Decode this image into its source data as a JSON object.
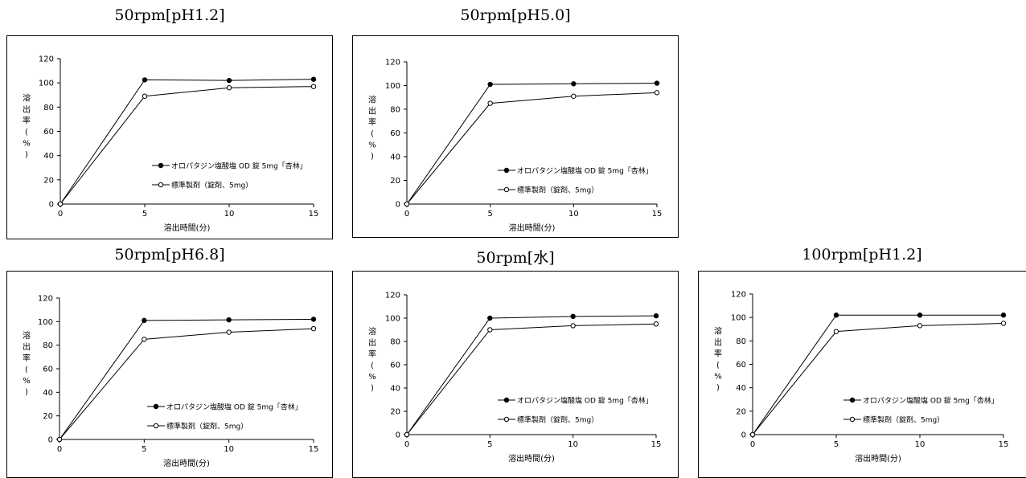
{
  "chart_data": [
    {
      "type": "line",
      "title": "50rpm[pH1.2]",
      "xlabel": "溶出時間(分)",
      "ylabel": "溶出率(%)",
      "xlim": [
        0,
        15
      ],
      "ylim": [
        0,
        120
      ],
      "xticks": [
        0,
        5,
        10,
        15
      ],
      "yticks": [
        0,
        20,
        40,
        60,
        80,
        100,
        120
      ],
      "grid": false,
      "legend_position": "bottom-right",
      "x": [
        0,
        5,
        10,
        15
      ],
      "series": [
        {
          "name": "オロパタジン塩酸塩 OD 錠 5mg「杏林」",
          "marker": "filled-circle",
          "color": "#000000",
          "values": [
            0,
            102.5,
            102,
            103
          ]
        },
        {
          "name": "標準製剤（錠剤、5mg）",
          "marker": "open-circle",
          "color": "#000000",
          "values": [
            0,
            89,
            96,
            97
          ]
        }
      ]
    },
    {
      "type": "line",
      "title": "50rpm[pH5.0]",
      "xlabel": "溶出時間(分)",
      "ylabel": "溶出率(%)",
      "xlim": [
        0,
        15
      ],
      "ylim": [
        0,
        120
      ],
      "xticks": [
        0,
        5,
        10,
        15
      ],
      "yticks": [
        0,
        20,
        40,
        60,
        80,
        100,
        120
      ],
      "grid": false,
      "legend_position": "bottom-right",
      "x": [
        0,
        5,
        10,
        15
      ],
      "series": [
        {
          "name": "オロパタジン塩酸塩 OD 錠 5mg「杏林」",
          "marker": "filled-circle",
          "color": "#000000",
          "values": [
            0,
            101,
            101.5,
            102
          ]
        },
        {
          "name": "標準製剤（錠剤、5mg）",
          "marker": "open-circle",
          "color": "#000000",
          "values": [
            0,
            85,
            91,
            94
          ]
        }
      ]
    },
    {
      "type": "line",
      "title": "50rpm[pH6.8]",
      "xlabel": "溶出時間(分)",
      "ylabel": "溶出率(%)",
      "xlim": [
        0,
        15
      ],
      "ylim": [
        0,
        120
      ],
      "xticks": [
        0,
        5,
        10,
        15
      ],
      "yticks": [
        0,
        20,
        40,
        60,
        80,
        100,
        120
      ],
      "grid": false,
      "legend_position": "bottom-right",
      "x": [
        0,
        5,
        10,
        15
      ],
      "series": [
        {
          "name": "オロパタジン塩酸塩 OD 錠 5mg「杏林」",
          "marker": "filled-circle",
          "color": "#000000",
          "values": [
            0,
            101,
            101.5,
            102
          ]
        },
        {
          "name": "標準製剤（錠剤、5mg）",
          "marker": "open-circle",
          "color": "#000000",
          "values": [
            0,
            85,
            91,
            94
          ]
        }
      ]
    },
    {
      "type": "line",
      "title": "50rpm[水]",
      "xlabel": "溶出時間(分)",
      "ylabel": "溶出率(%)",
      "xlim": [
        0,
        15
      ],
      "ylim": [
        0,
        120
      ],
      "xticks": [
        0,
        5,
        10,
        15
      ],
      "yticks": [
        0,
        20,
        40,
        60,
        80,
        100,
        120
      ],
      "grid": false,
      "legend_position": "bottom-right",
      "x": [
        0,
        5,
        10,
        15
      ],
      "series": [
        {
          "name": "オロパタジン塩酸塩 OD 錠 5mg「杏林」",
          "marker": "filled-circle",
          "color": "#000000",
          "values": [
            0,
            100,
            101.5,
            102
          ]
        },
        {
          "name": "標準製剤（錠剤、5mg）",
          "marker": "open-circle",
          "color": "#000000",
          "values": [
            0,
            90,
            93.5,
            95
          ]
        }
      ]
    },
    {
      "type": "line",
      "title": "100rpm[pH1.2]",
      "xlabel": "溶出時間(分)",
      "ylabel": "溶出率(%)",
      "xlim": [
        0,
        15
      ],
      "ylim": [
        0,
        120
      ],
      "xticks": [
        0,
        5,
        10,
        15
      ],
      "yticks": [
        0,
        20,
        40,
        60,
        80,
        100,
        120
      ],
      "grid": false,
      "legend_position": "bottom-right",
      "x": [
        0,
        5,
        10,
        15
      ],
      "series": [
        {
          "name": "オロパタジン塩酸塩 OD 錠 5mg「杏林」",
          "marker": "filled-circle",
          "color": "#000000",
          "values": [
            0,
            102,
            102,
            102
          ]
        },
        {
          "name": "標準製剤（錠剤、5mg）",
          "marker": "open-circle",
          "color": "#000000",
          "values": [
            0,
            88,
            93,
            95
          ]
        }
      ]
    }
  ]
}
